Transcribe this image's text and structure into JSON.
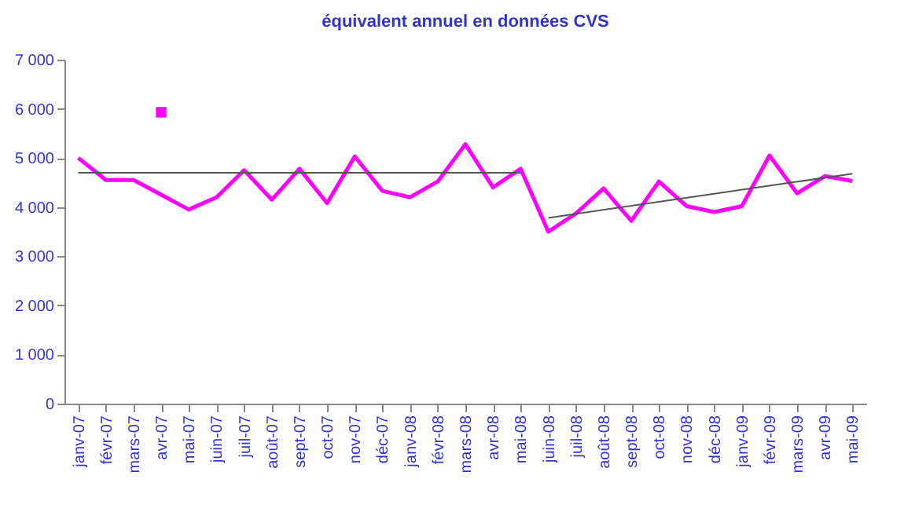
{
  "chart_data": {
    "type": "line",
    "title": "équivalent annuel en données CVS",
    "categories": [
      "janv-07",
      "févr-07",
      "mars-07",
      "avr-07",
      "mai-07",
      "juin-07",
      "juil-07",
      "août-07",
      "sept-07",
      "oct-07",
      "nov-07",
      "déc-07",
      "janv-08",
      "févr-08",
      "mars-08",
      "avr-08",
      "mai-08",
      "juin-08",
      "juil-08",
      "août-08",
      "sept-08",
      "oct-08",
      "nov-08",
      "déc-08",
      "janv-09",
      "févr-09",
      "mars-09",
      "avr-09",
      "mai-09"
    ],
    "series": [
      {
        "color": "#ff00ff",
        "values": [
          5000,
          4550,
          4550,
          4250,
          3950,
          4200,
          4750,
          4150,
          4780,
          4080,
          5030,
          4330,
          4200,
          4520,
          5280,
          4400,
          4780,
          3500,
          3870,
          4380,
          3720,
          4520,
          4020,
          3900,
          4020,
          5050,
          4280,
          4630,
          4530
        ]
      },
      {
        "type": "scatter",
        "color": "#ff00ff",
        "marker": "square",
        "x": [
          "avr-07"
        ],
        "values": [
          5930
        ]
      },
      {
        "type": "line",
        "color": "#555555",
        "x": [
          "janv-07",
          "mai-08"
        ],
        "values": [
          4700,
          4700
        ]
      },
      {
        "type": "line",
        "color": "#555555",
        "x": [
          "juin-08",
          "mai-09"
        ],
        "values": [
          3780,
          4680
        ]
      }
    ],
    "ylim": [
      0,
      7000
    ],
    "yticks": [
      {
        "value": 0,
        "label": "0"
      },
      {
        "value": 1000,
        "label": "1 000"
      },
      {
        "value": 2000,
        "label": "2 000"
      },
      {
        "value": 3000,
        "label": "3 000"
      },
      {
        "value": 4000,
        "label": "4 000"
      },
      {
        "value": 5000,
        "label": "5 000"
      },
      {
        "value": 6000,
        "label": "6 000"
      },
      {
        "value": 7000,
        "label": "7 000"
      }
    ],
    "grid": false
  }
}
